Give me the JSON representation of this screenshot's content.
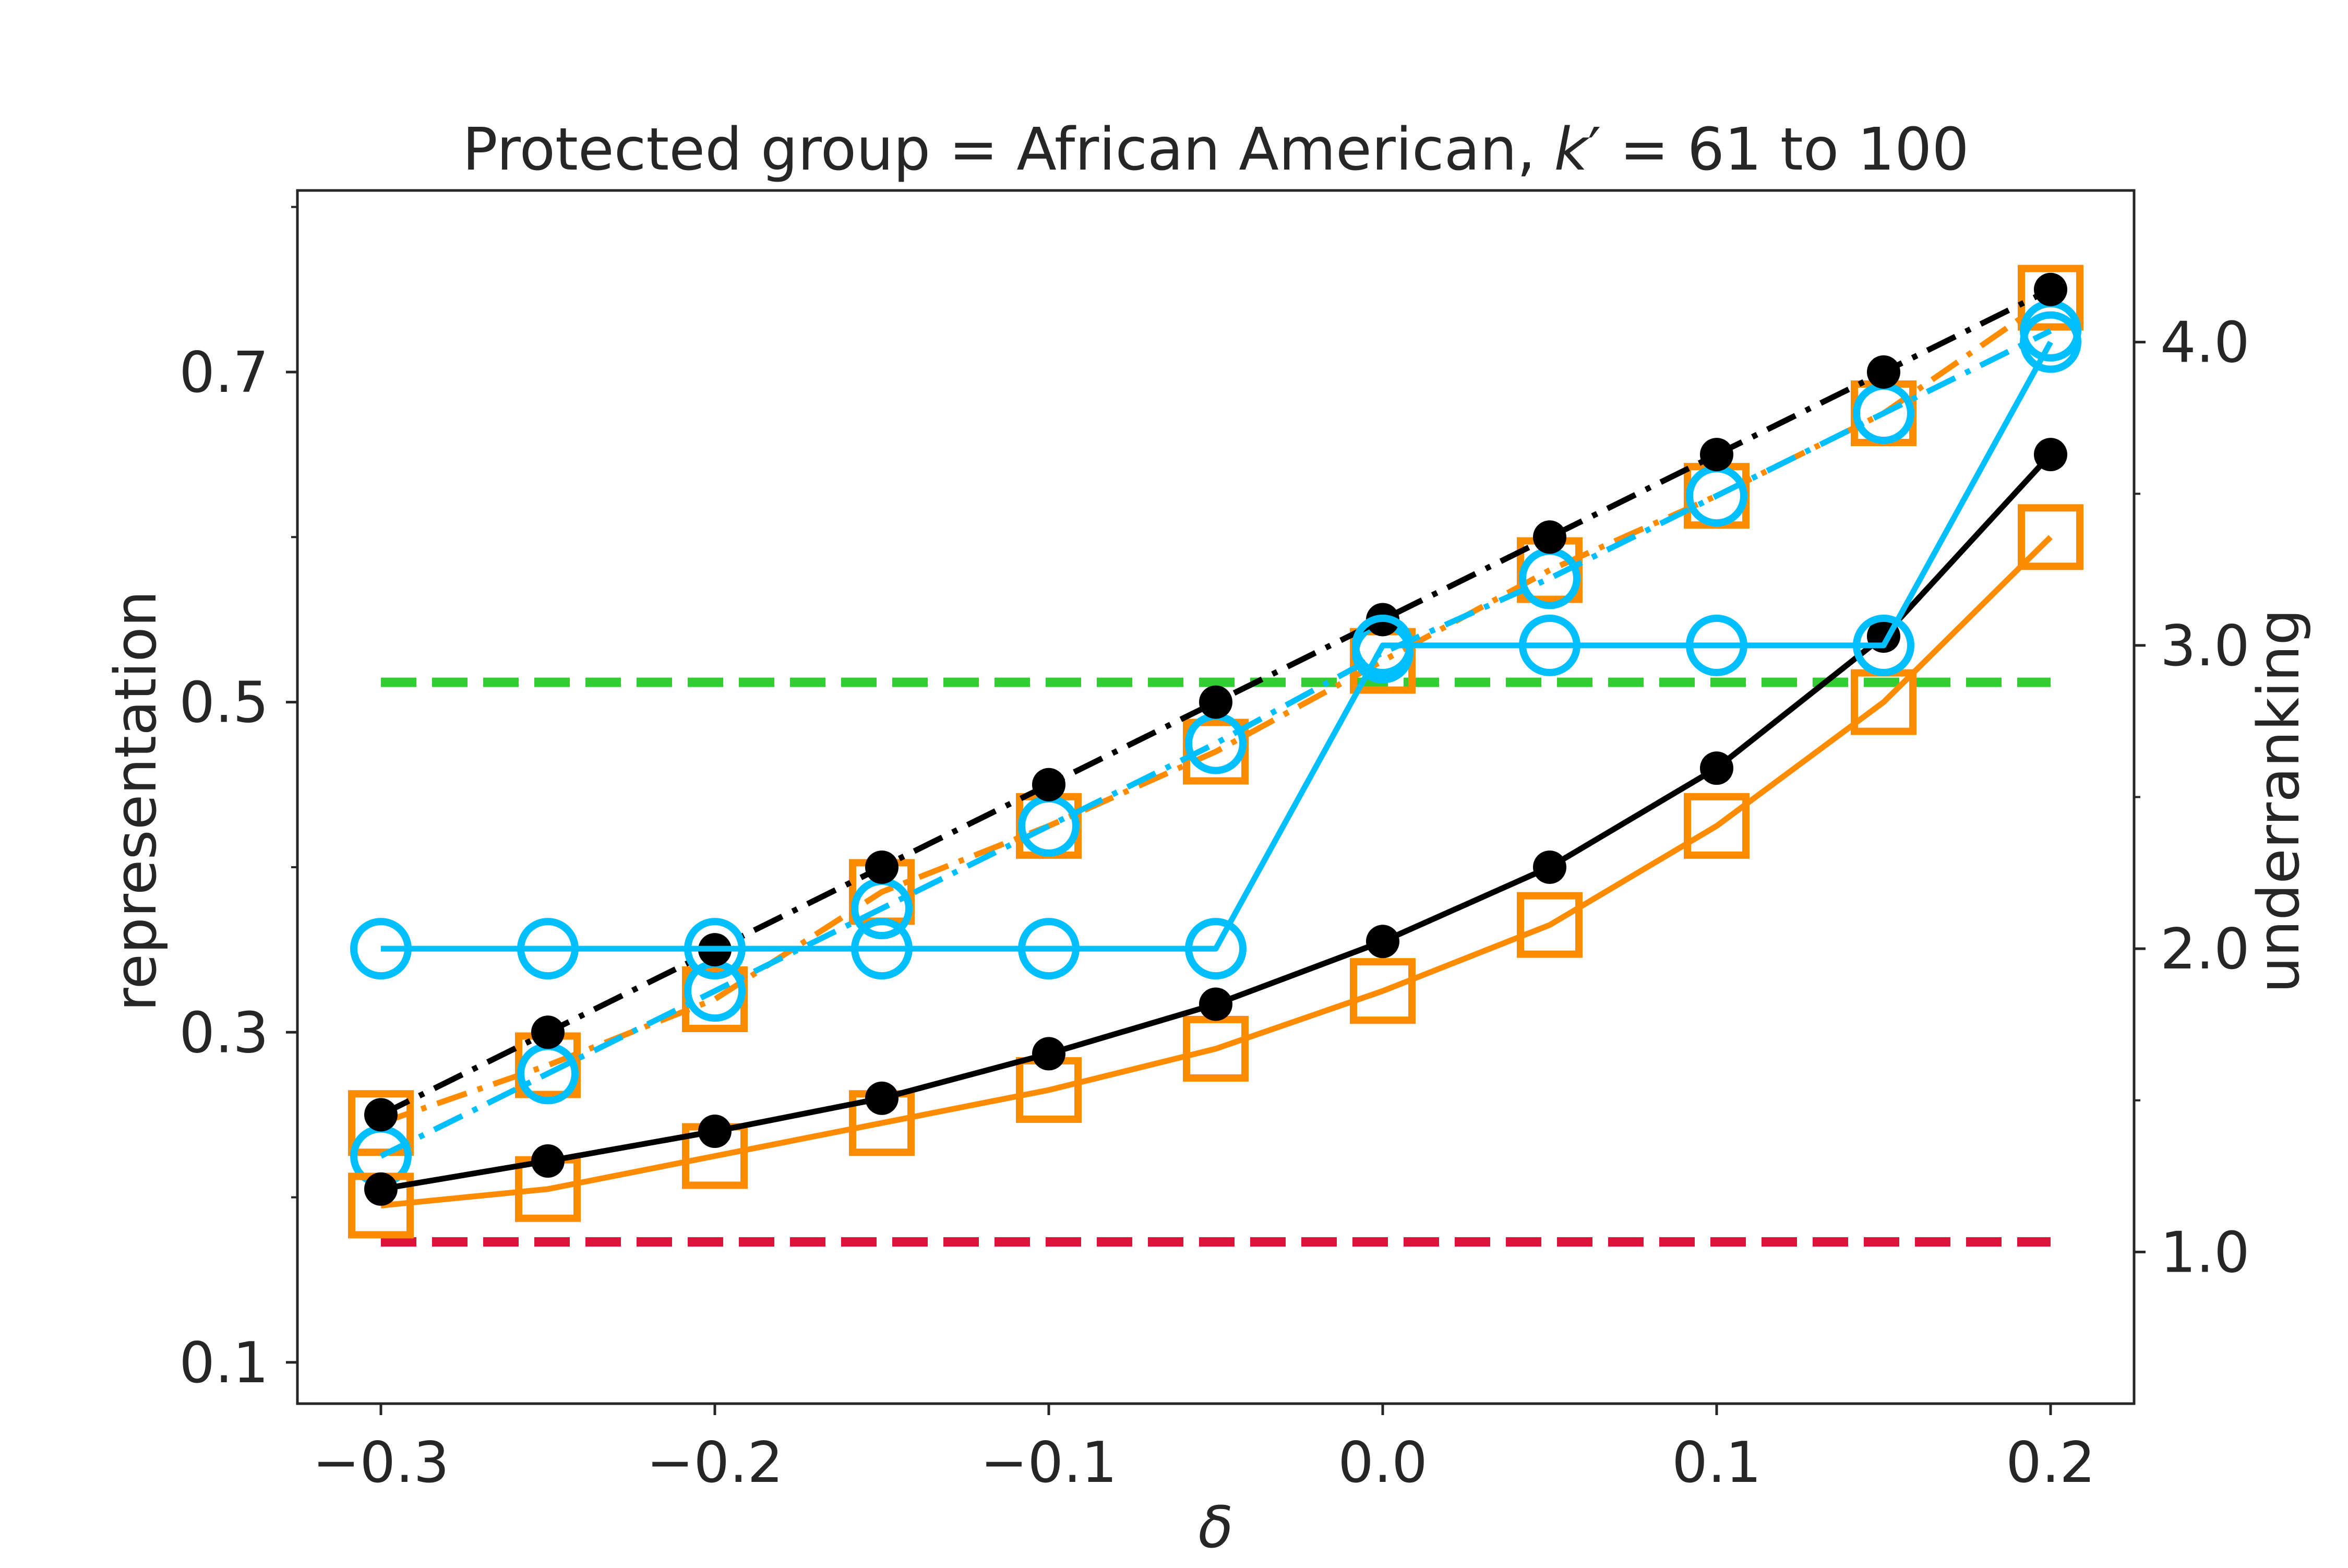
{
  "chart_data": {
    "type": "line",
    "title": "Protected group = African American, k′ = 61 to 100",
    "title_parts": {
      "prefix": "Protected group = African American, ",
      "var": "k",
      "prime": "′",
      "suffix": " = 61 to 100"
    },
    "xlabel": "δ",
    "ylabel": "representation",
    "y2label": "underranking",
    "xlim": [
      -0.325,
      0.225
    ],
    "ylim": [
      0.075,
      0.81
    ],
    "y2lim": [
      0.5,
      4.5
    ],
    "xticks": [
      -0.3,
      -0.2,
      -0.1,
      0.0,
      0.1,
      0.2
    ],
    "xtick_labels": [
      "−0.3",
      "−0.2",
      "−0.1",
      "0.0",
      "0.1",
      "0.2"
    ],
    "yticks_major": [
      0.1,
      0.3,
      0.5,
      0.7
    ],
    "ytick_labels": [
      "0.1",
      "0.3",
      "0.5",
      "0.7"
    ],
    "yticks_minor": [
      0.2,
      0.4,
      0.6,
      0.8
    ],
    "y2ticks_major": [
      1.0,
      2.0,
      3.0,
      4.0
    ],
    "y2tick_labels": [
      "1.0",
      "2.0",
      "3.0",
      "4.0"
    ],
    "y2ticks_minor": [
      1.5,
      2.5,
      3.5
    ],
    "grid": false,
    "legend": "none",
    "x": [
      -0.3,
      -0.25,
      -0.2,
      -0.15,
      -0.1,
      -0.05,
      0.0,
      0.05,
      0.1,
      0.15,
      0.2
    ],
    "series": [
      {
        "axis": "left",
        "color": "#ff8c00",
        "style": "dashdot",
        "marker": "square",
        "values": [
          0.245,
          0.28,
          0.32,
          0.385,
          0.425,
          0.47,
          0.525,
          0.58,
          0.625,
          0.675,
          0.745
        ]
      },
      {
        "axis": "left",
        "color": "#00bfff",
        "style": "dashdot",
        "marker": "circle",
        "values": [
          0.225,
          0.275,
          0.325,
          0.375,
          0.425,
          0.475,
          0.53,
          0.575,
          0.625,
          0.675,
          0.725
        ]
      },
      {
        "axis": "left",
        "color": "#000000",
        "style": "dashdot",
        "marker": "dot",
        "values": [
          0.25,
          0.3,
          0.35,
          0.4,
          0.45,
          0.5,
          0.55,
          0.6,
          0.65,
          0.7,
          0.75
        ]
      },
      {
        "axis": "left",
        "color": "#ff8c00",
        "style": "solid",
        "marker": "square",
        "values": [
          0.195,
          0.205,
          0.225,
          0.245,
          0.265,
          0.29,
          0.325,
          0.365,
          0.425,
          0.5,
          0.6
        ]
      },
      {
        "axis": "left",
        "color": "#000000",
        "style": "solid",
        "marker": "dot",
        "values": [
          0.205,
          0.222,
          0.24,
          0.26,
          0.287,
          0.317,
          0.355,
          0.4,
          0.46,
          0.54,
          0.65
        ]
      },
      {
        "axis": "right",
        "color": "#00bfff",
        "style": "solid",
        "marker": "circle",
        "values": [
          2.0,
          2.0,
          2.0,
          2.0,
          2.0,
          2.0,
          3.0,
          3.0,
          3.0,
          3.0,
          4.0
        ]
      }
    ],
    "reference_lines": [
      {
        "axis": "left",
        "value": 0.512,
        "color": "#32cd32",
        "style": "dashed",
        "x_from": -0.3,
        "x_to": 0.2
      },
      {
        "axis": "left",
        "value": 0.173,
        "color": "#dc143c",
        "style": "dashed",
        "x_from": -0.3,
        "x_to": 0.2
      }
    ]
  }
}
